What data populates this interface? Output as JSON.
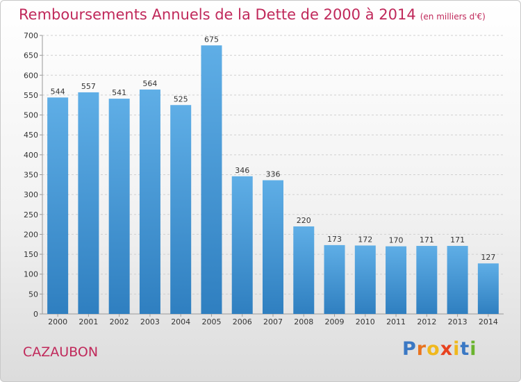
{
  "header": {
    "title": "Remboursements Annuels de la Dette de 2000 à 2014",
    "subtitle": "(en milliers d'€)"
  },
  "footer": {
    "place": "CAZAUBON",
    "logo_text": "Proxiti",
    "logo_colors": [
      "#3a78c4",
      "#e8731f",
      "#f0b81d",
      "#e8421f",
      "#f0b81d",
      "#3a78c4",
      "#6ab42e"
    ]
  },
  "colors": {
    "title": "#c0285a",
    "bar_top": "#5faee6",
    "bar_bottom": "#2f7fc0"
  },
  "chart_data": {
    "type": "bar",
    "title": "Remboursements Annuels de la Dette de 2000 à 2014",
    "subtitle": "(en milliers d'€)",
    "categories": [
      "2000",
      "2001",
      "2002",
      "2003",
      "2004",
      "2005",
      "2006",
      "2007",
      "2008",
      "2009",
      "2010",
      "2011",
      "2012",
      "2013",
      "2014"
    ],
    "values": [
      544,
      557,
      541,
      564,
      525,
      675,
      346,
      336,
      220,
      173,
      172,
      170,
      171,
      171,
      127
    ],
    "ylim": [
      0,
      700
    ],
    "yticks": [
      0,
      50,
      100,
      150,
      200,
      250,
      300,
      350,
      400,
      450,
      500,
      550,
      600,
      650,
      700
    ],
    "grid": true,
    "xlabel": "",
    "ylabel": ""
  }
}
